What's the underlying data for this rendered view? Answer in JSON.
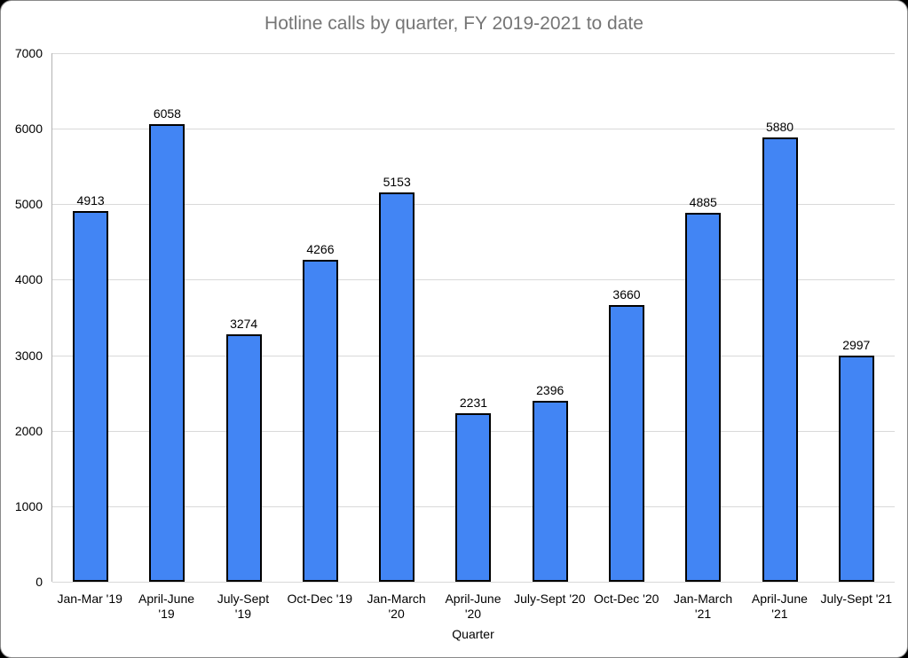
{
  "window": {
    "background_color": "#ffffff",
    "outer_background": "#000000"
  },
  "chart_data": {
    "type": "bar",
    "title": "Hotline calls by quarter, FY 2019-2021 to date",
    "xlabel": "Quarter",
    "ylabel": "",
    "ylim": [
      0,
      7000
    ],
    "yticks": [
      0,
      1000,
      2000,
      3000,
      4000,
      5000,
      6000,
      7000
    ],
    "categories": [
      "Jan-Mar '19",
      "April-June\n'19",
      "July-Sept\n'19",
      "Oct-Dec '19",
      "Jan-March\n'20",
      "April-June\n'20",
      "July-Sept '20",
      "Oct-Dec '20",
      "Jan-March\n'21",
      "April-June\n'21",
      "July-Sept '21"
    ],
    "values": [
      4913,
      6058,
      3274,
      4266,
      5153,
      2231,
      2396,
      3660,
      4885,
      5880,
      2997
    ],
    "grid": true,
    "legend": "none",
    "data_labels": true,
    "colors": {
      "bar_fill": "#4285f4",
      "bar_border": "#000000",
      "gridline": "#d9d9d9",
      "axis_line": "#b3b3b3",
      "title_text": "#757575",
      "label_text": "#000000"
    }
  }
}
